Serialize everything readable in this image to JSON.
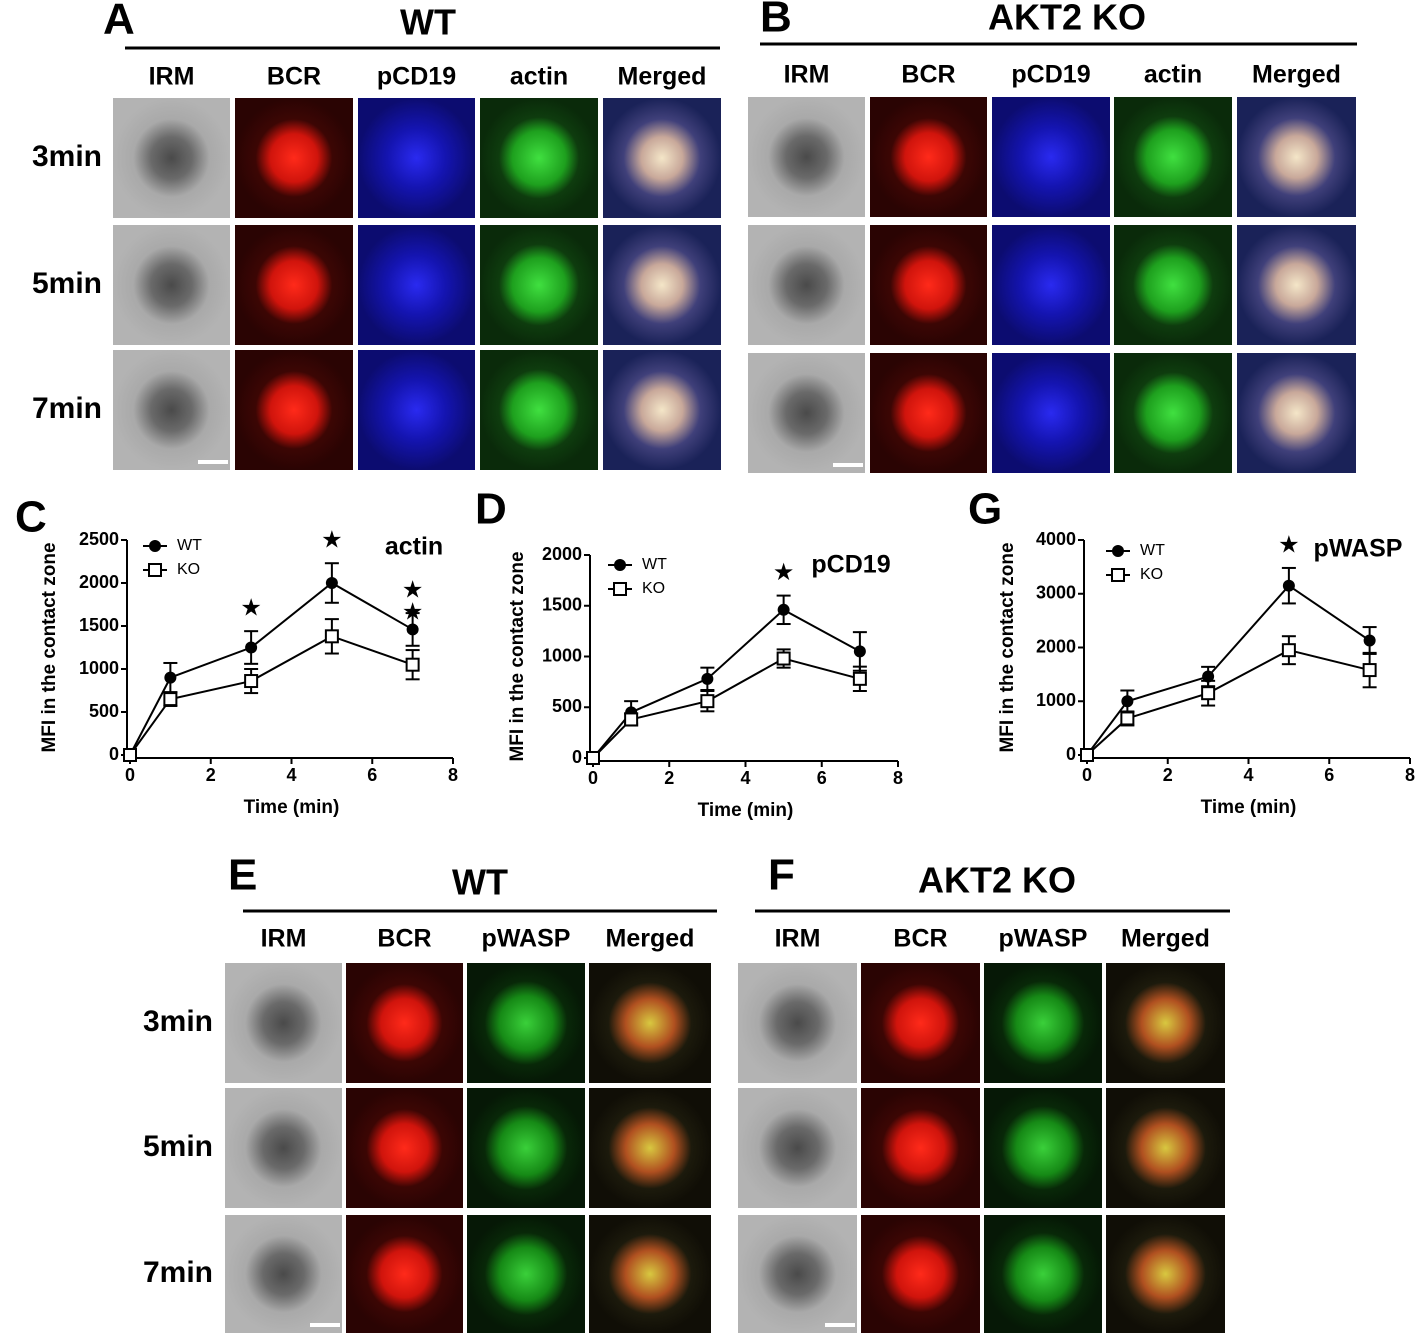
{
  "panels": [
    {
      "letter": "A",
      "title": "WT",
      "columns": [
        "IRM",
        "BCR",
        "pCD19",
        "actin",
        "Merged"
      ],
      "rows": [
        "3min",
        "5min",
        "7min"
      ]
    },
    {
      "letter": "B",
      "title": "AKT2 KO",
      "columns": [
        "IRM",
        "BCR",
        "pCD19",
        "actin",
        "Merged"
      ]
    },
    {
      "letter": "E",
      "title": "WT",
      "columns": [
        "IRM",
        "BCR",
        "pWASP",
        "Merged"
      ],
      "rows": [
        "3min",
        "5min",
        "7min"
      ]
    },
    {
      "letter": "F",
      "title": "AKT2 KO",
      "columns": [
        "IRM",
        "BCR",
        "pWASP",
        "Merged"
      ]
    }
  ],
  "chart_data": [
    {
      "type": "line",
      "letter": "C",
      "title": "actin",
      "x_label": "Time (min)",
      "y_label": "MFI in the contact zone",
      "x": [
        0,
        1,
        3,
        5,
        7
      ],
      "xlim": [
        0,
        8
      ],
      "xticks": [
        0,
        2,
        4,
        6,
        8
      ],
      "ylim": [
        0,
        2500
      ],
      "yticks": [
        0,
        500,
        1000,
        1500,
        2000,
        2500
      ],
      "series": [
        {
          "name": "WT",
          "color": "#000000",
          "marker": "circle",
          "values": [
            0,
            900,
            1250,
            2000,
            1460
          ],
          "errors": [
            0,
            170,
            190,
            230,
            190
          ]
        },
        {
          "name": "KO",
          "color": "#000000",
          "marker": "square",
          "values": [
            0,
            650,
            860,
            1380,
            1050
          ],
          "errors": [
            0,
            80,
            140,
            200,
            170
          ]
        }
      ],
      "annotations": [
        {
          "x": 3,
          "text": "★"
        },
        {
          "x": 5,
          "text": "★"
        },
        {
          "x": 7,
          "text": "★"
        },
        {
          "x": 7,
          "text": "★"
        }
      ]
    },
    {
      "type": "line",
      "letter": "D",
      "title": "pCD19",
      "x_label": "Time (min)",
      "y_label": "MFI in the contact zone",
      "x": [
        0,
        1,
        3,
        5,
        7
      ],
      "xlim": [
        0,
        8
      ],
      "xticks": [
        0,
        2,
        4,
        6,
        8
      ],
      "ylim": [
        0,
        2000
      ],
      "yticks": [
        0,
        500,
        1000,
        1500,
        2000
      ],
      "series": [
        {
          "name": "WT",
          "color": "#000000",
          "marker": "circle",
          "values": [
            0,
            450,
            780,
            1460,
            1050
          ],
          "errors": [
            0,
            110,
            110,
            140,
            190
          ]
        },
        {
          "name": "KO",
          "color": "#000000",
          "marker": "square",
          "values": [
            0,
            380,
            560,
            980,
            780
          ],
          "errors": [
            0,
            60,
            100,
            90,
            120
          ]
        }
      ],
      "annotations": [
        {
          "x": 5,
          "text": "★"
        }
      ]
    },
    {
      "type": "line",
      "letter": "G",
      "title": "pWASP",
      "x_label": "Time (min)",
      "y_label": "MFI in the contact zone",
      "x": [
        0,
        1,
        3,
        5,
        7
      ],
      "xlim": [
        0,
        8
      ],
      "xticks": [
        0,
        2,
        4,
        6,
        8
      ],
      "ylim": [
        0,
        4000
      ],
      "yticks": [
        0,
        1000,
        2000,
        3000,
        4000
      ],
      "series": [
        {
          "name": "WT",
          "color": "#000000",
          "marker": "circle",
          "values": [
            0,
            1000,
            1460,
            3150,
            2130
          ],
          "errors": [
            0,
            200,
            180,
            330,
            250
          ]
        },
        {
          "name": "KO",
          "color": "#000000",
          "marker": "square",
          "values": [
            0,
            680,
            1150,
            1950,
            1580
          ],
          "errors": [
            0,
            130,
            230,
            260,
            320
          ]
        }
      ],
      "annotations": [
        {
          "x": 5,
          "text": "★"
        }
      ]
    }
  ]
}
